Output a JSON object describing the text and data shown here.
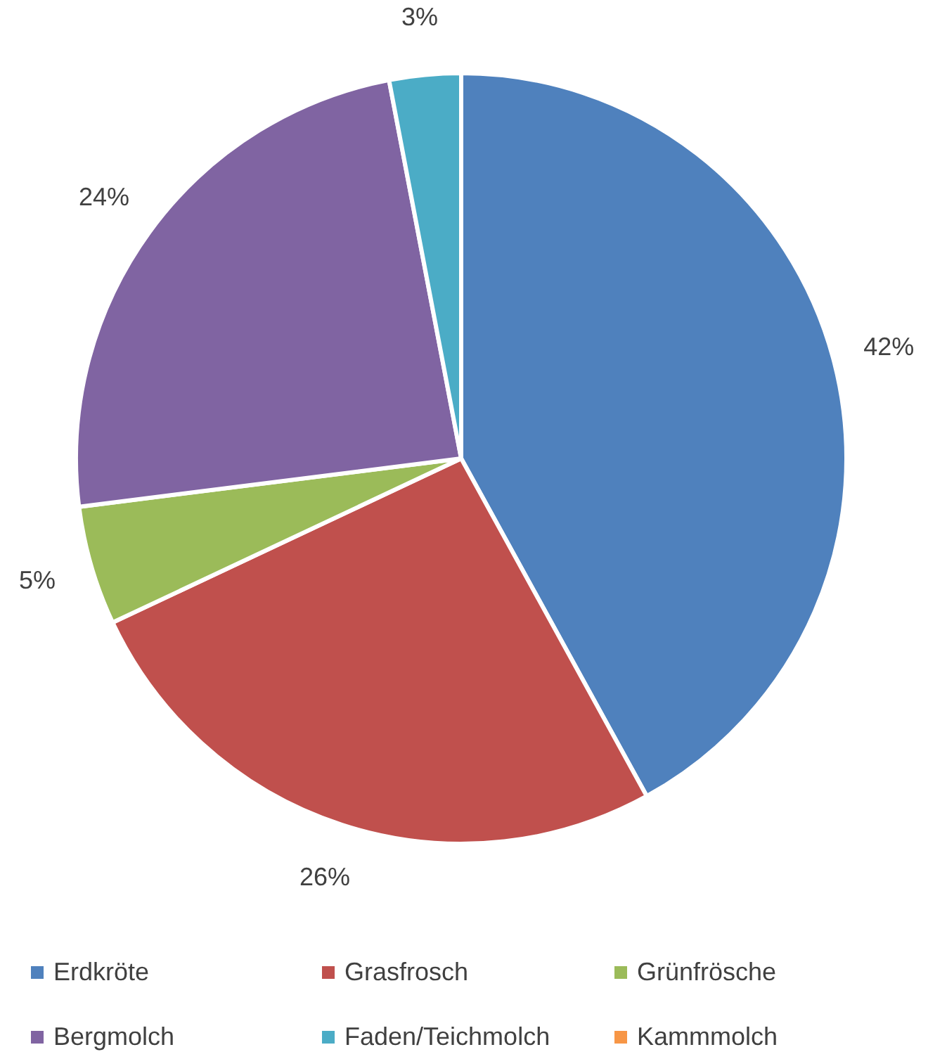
{
  "chart_data": {
    "type": "pie",
    "categories": [
      "Erdkröte",
      "Grasfrosch",
      "Grünfrösche",
      "Bergmolch",
      "Faden/Teichmolch",
      "Kammmolch"
    ],
    "values": [
      42,
      26,
      5,
      24,
      3,
      0
    ],
    "colors": [
      "#4f81bd",
      "#c0504d",
      "#9bbb59",
      "#8064a2",
      "#4bacc6",
      "#f79646"
    ],
    "value_labels": [
      "42%",
      "26%",
      "5%",
      "24%",
      "3%",
      null
    ],
    "legend": "bottom"
  }
}
